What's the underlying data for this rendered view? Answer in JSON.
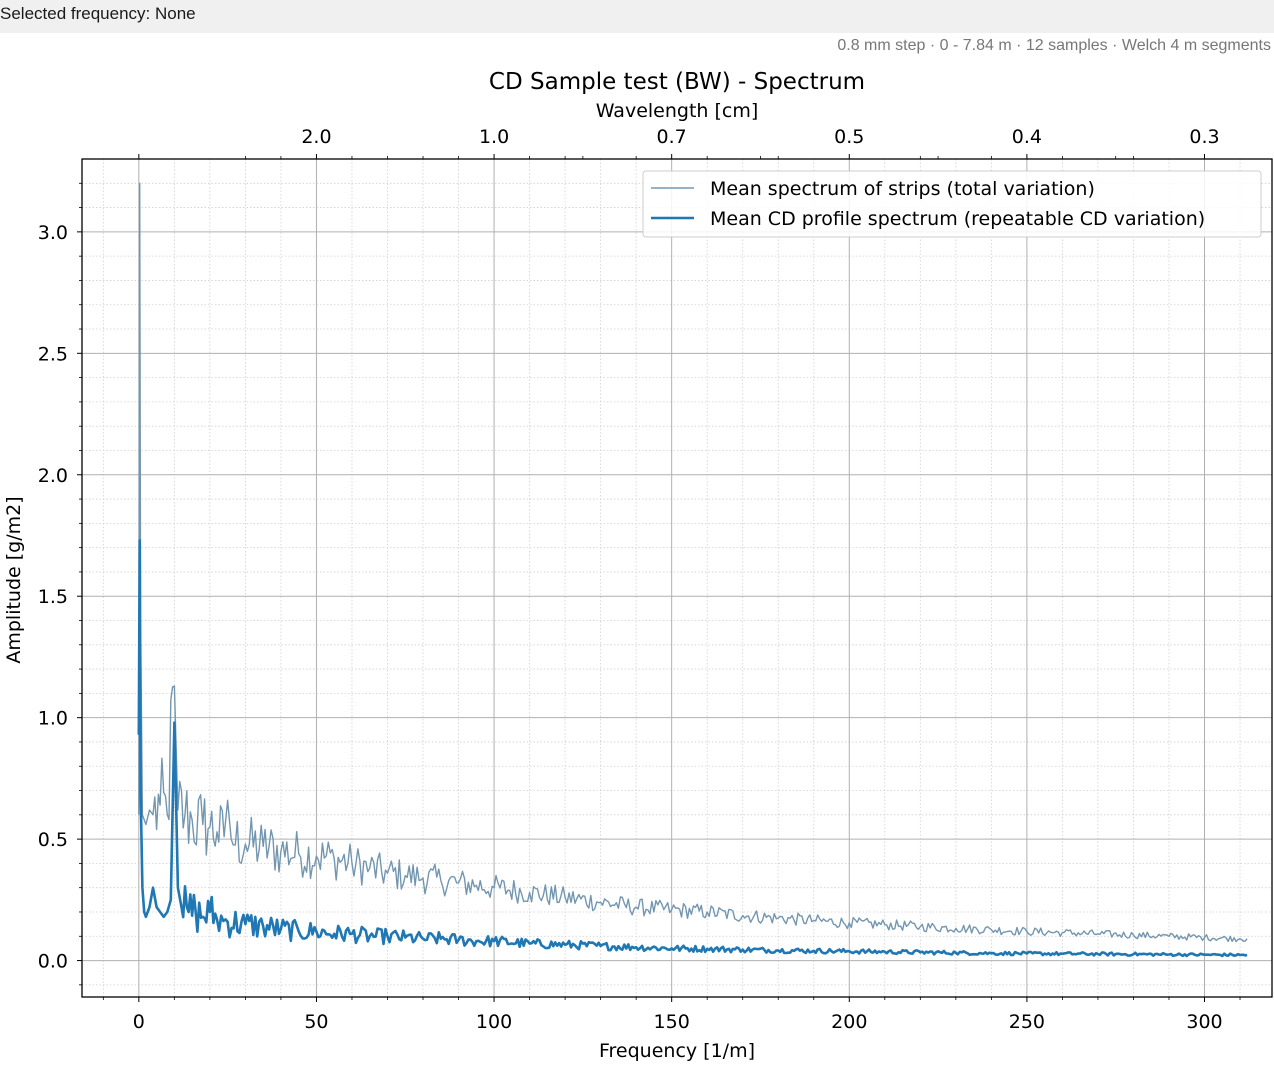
{
  "status": {
    "label": "Selected frequency: None"
  },
  "info_line": "0.8 mm step · 0 - 7.84 m · 12 samples · Welch 4 m segments",
  "chart_data": {
    "type": "line",
    "title": "CD Sample test (BW) - Spectrum",
    "xlabel": "Frequency [1/m]",
    "ylabel": "Amplitude [g/m2]",
    "secondary_xlabel": "Wavelength [cm]",
    "xlim": [
      -16,
      319
    ],
    "ylim": [
      -0.15,
      3.3
    ],
    "x_ticks": [
      0,
      50,
      100,
      150,
      200,
      250,
      300
    ],
    "y_ticks": [
      0.0,
      0.5,
      1.0,
      1.5,
      2.0,
      2.5,
      3.0
    ],
    "secondary_x_ticks": [
      {
        "label": "2.0",
        "frequency": 50
      },
      {
        "label": "1.0",
        "frequency": 100
      },
      {
        "label": "0.7",
        "frequency": 150
      },
      {
        "label": "0.5",
        "frequency": 200
      },
      {
        "label": "0.4",
        "frequency": 250
      },
      {
        "label": "0.3",
        "frequency": 300
      }
    ],
    "grid": true,
    "minor_grid": true,
    "legend_position": "top-right",
    "series": [
      {
        "name": "Mean spectrum of strips (total variation)",
        "color": "#7396b0",
        "line_style": "thin",
        "points": [
          [
            0,
            0.6
          ],
          [
            0.25,
            3.2
          ],
          [
            0.5,
            1.4
          ],
          [
            1,
            0.6
          ],
          [
            2,
            0.56
          ],
          [
            3,
            0.62
          ],
          [
            4,
            0.6
          ],
          [
            6,
            0.64
          ],
          [
            8,
            0.6
          ],
          [
            10,
            1.13
          ],
          [
            11,
            0.62
          ],
          [
            13,
            0.6
          ],
          [
            15,
            0.58
          ],
          [
            18,
            0.56
          ],
          [
            20,
            0.55
          ],
          [
            22,
            0.53
          ],
          [
            24,
            0.51
          ],
          [
            25,
            0.66
          ],
          [
            26,
            0.5
          ],
          [
            30,
            0.48
          ],
          [
            35,
            0.47
          ],
          [
            40,
            0.45
          ],
          [
            45,
            0.44
          ],
          [
            50,
            0.43
          ],
          [
            55,
            0.42
          ],
          [
            60,
            0.4
          ],
          [
            65,
            0.38
          ],
          [
            70,
            0.36
          ],
          [
            75,
            0.35
          ],
          [
            80,
            0.34
          ],
          [
            85,
            0.33
          ],
          [
            90,
            0.32
          ],
          [
            95,
            0.31
          ],
          [
            100,
            0.3
          ],
          [
            110,
            0.28
          ],
          [
            120,
            0.26
          ],
          [
            130,
            0.24
          ],
          [
            140,
            0.22
          ],
          [
            150,
            0.21
          ],
          [
            160,
            0.2
          ],
          [
            170,
            0.185
          ],
          [
            180,
            0.175
          ],
          [
            190,
            0.165
          ],
          [
            200,
            0.155
          ],
          [
            210,
            0.148
          ],
          [
            220,
            0.14
          ],
          [
            230,
            0.133
          ],
          [
            240,
            0.127
          ],
          [
            250,
            0.12
          ],
          [
            260,
            0.115
          ],
          [
            270,
            0.11
          ],
          [
            280,
            0.105
          ],
          [
            290,
            0.1
          ],
          [
            300,
            0.095
          ],
          [
            310,
            0.09
          ],
          [
            312,
            0.09
          ]
        ]
      },
      {
        "name": "Mean CD profile spectrum (repeatable CD variation)",
        "color": "#1f77b4",
        "line_style": "thick",
        "points": [
          [
            0,
            0.93
          ],
          [
            0.25,
            1.73
          ],
          [
            0.5,
            0.7
          ],
          [
            1,
            0.3
          ],
          [
            1.5,
            0.2
          ],
          [
            2,
            0.18
          ],
          [
            3,
            0.22
          ],
          [
            4,
            0.3
          ],
          [
            5,
            0.22
          ],
          [
            6,
            0.2
          ],
          [
            7,
            0.18
          ],
          [
            8,
            0.2
          ],
          [
            9,
            0.25
          ],
          [
            10,
            0.98
          ],
          [
            11,
            0.3
          ],
          [
            12,
            0.22
          ],
          [
            14,
            0.2
          ],
          [
            16,
            0.2
          ],
          [
            18,
            0.18
          ],
          [
            20,
            0.2
          ],
          [
            22,
            0.17
          ],
          [
            25,
            0.16
          ],
          [
            30,
            0.15
          ],
          [
            35,
            0.14
          ],
          [
            40,
            0.13
          ],
          [
            45,
            0.12
          ],
          [
            50,
            0.12
          ],
          [
            55,
            0.11
          ],
          [
            60,
            0.11
          ],
          [
            65,
            0.1
          ],
          [
            70,
            0.1
          ],
          [
            75,
            0.095
          ],
          [
            80,
            0.09
          ],
          [
            85,
            0.09
          ],
          [
            90,
            0.085
          ],
          [
            95,
            0.08
          ],
          [
            100,
            0.08
          ],
          [
            110,
            0.07
          ],
          [
            120,
            0.065
          ],
          [
            130,
            0.06
          ],
          [
            140,
            0.055
          ],
          [
            150,
            0.05
          ],
          [
            160,
            0.048
          ],
          [
            170,
            0.045
          ],
          [
            180,
            0.042
          ],
          [
            190,
            0.04
          ],
          [
            200,
            0.038
          ],
          [
            210,
            0.036
          ],
          [
            220,
            0.034
          ],
          [
            230,
            0.032
          ],
          [
            240,
            0.03
          ],
          [
            250,
            0.029
          ],
          [
            260,
            0.028
          ],
          [
            270,
            0.027
          ],
          [
            280,
            0.026
          ],
          [
            290,
            0.025
          ],
          [
            300,
            0.024
          ],
          [
            310,
            0.023
          ],
          [
            312,
            0.023
          ]
        ]
      }
    ]
  }
}
